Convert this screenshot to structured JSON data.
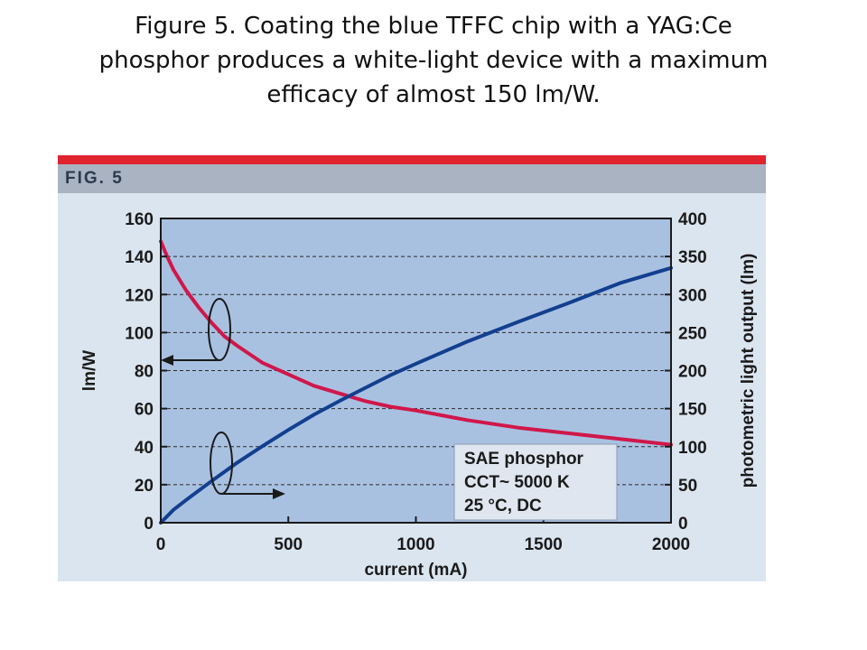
{
  "caption": {
    "line1": "Figure 5. Coating the blue TFFC chip with a YAG:Ce",
    "line2": "phosphor produces a white-light device with a maximum",
    "line3": "efficacy of almost 150 lm/W."
  },
  "figure": {
    "label": "FIG. 5"
  },
  "colors": {
    "plot_bg": "#a9c1e1",
    "efficacy_line": "#d0174a",
    "output_line": "#123f8f",
    "header_red": "#e0242d",
    "header_gray": "#a9b3c1",
    "panel_bg": "#dbe5f0"
  },
  "chart_data": {
    "type": "line",
    "xlabel": "current (mA)",
    "ylabel": "lm/W",
    "y2label": "photometric light output (lm)",
    "xlim": [
      0,
      2000
    ],
    "ylim": [
      0,
      160
    ],
    "y2lim": [
      0,
      400
    ],
    "x_ticks": [
      0,
      500,
      1000,
      1500,
      2000
    ],
    "y_ticks": [
      0,
      20,
      40,
      60,
      80,
      100,
      120,
      140,
      160
    ],
    "y2_ticks": [
      0,
      50,
      100,
      150,
      200,
      250,
      300,
      350,
      400
    ],
    "grid": "horizontal dashed",
    "series": [
      {
        "axis": "left",
        "color_key": "efficacy_line",
        "x": [
          0,
          25,
          50,
          100,
          150,
          200,
          250,
          300,
          400,
          500,
          600,
          700,
          800,
          900,
          1000,
          1200,
          1400,
          1600,
          1800,
          2000
        ],
        "y": [
          148,
          140,
          133,
          122,
          113,
          105,
          98,
          93,
          84,
          78,
          72,
          68,
          64,
          61,
          59,
          54,
          50,
          47,
          44,
          41
        ]
      },
      {
        "axis": "right",
        "color_key": "output_line",
        "x": [
          0,
          50,
          100,
          200,
          300,
          400,
          500,
          600,
          700,
          800,
          900,
          1000,
          1200,
          1400,
          1600,
          1800,
          2000
        ],
        "y": [
          0,
          17,
          30,
          55,
          79,
          101,
          122,
          142,
          160,
          177,
          194,
          209,
          238,
          264,
          289,
          315,
          335
        ]
      }
    ],
    "legend": {
      "position": "bottom-right",
      "lines": [
        "SAE phosphor",
        "CCT~ 5000 K",
        "25 °C, DC"
      ]
    }
  }
}
